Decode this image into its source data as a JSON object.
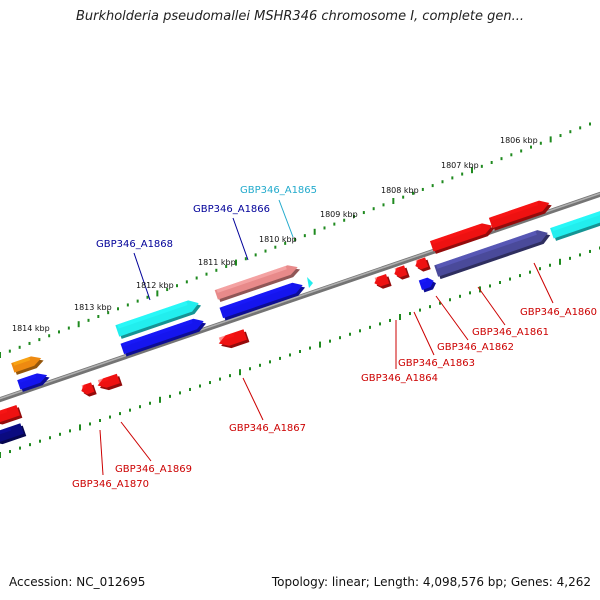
{
  "title": "Burkholderia pseudomallei MSHR346 chromosome I, complete gen...",
  "footer": {
    "accession": "Accession: NC_012695",
    "summary": "Topology: linear; Length: 4,098,576 bp; Genes: 4,262"
  },
  "colors": {
    "backbone": "#888888",
    "ruler_dots": "#1f8a1f",
    "red": "#ee1111",
    "blue": "#1515ee",
    "cyan": "#22eeee",
    "navy": "#0a0a80",
    "slate": "#4a4a9a",
    "pink": "#e88a8a",
    "orange": "#ee8a11",
    "label_red": "#cc0000",
    "label_blue": "#000099",
    "label_cyan": "#22aacc"
  },
  "ruler_labels": [
    "1806 kbp",
    "1807 kbp",
    "1808 kbp",
    "1809 kbp",
    "1810 kbp",
    "1811 kbp",
    "1812 kbp",
    "1813 kbp",
    "1814 kbp"
  ],
  "gene_labels": [
    {
      "text": "GBP346_A1865",
      "color": "cyan"
    },
    {
      "text": "GBP346_A1866",
      "color": "blue"
    },
    {
      "text": "GBP346_A1868",
      "color": "blue"
    },
    {
      "text": "GBP346_A1860",
      "color": "red"
    },
    {
      "text": "GBP346_A1861",
      "color": "red"
    },
    {
      "text": "GBP346_A1862",
      "color": "red"
    },
    {
      "text": "GBP346_A1863",
      "color": "red"
    },
    {
      "text": "GBP346_A1864",
      "color": "red"
    },
    {
      "text": "GBP346_A1867",
      "color": "red"
    },
    {
      "text": "GBP346_A1869",
      "color": "red"
    },
    {
      "text": "GBP346_A1870",
      "color": "red"
    }
  ]
}
